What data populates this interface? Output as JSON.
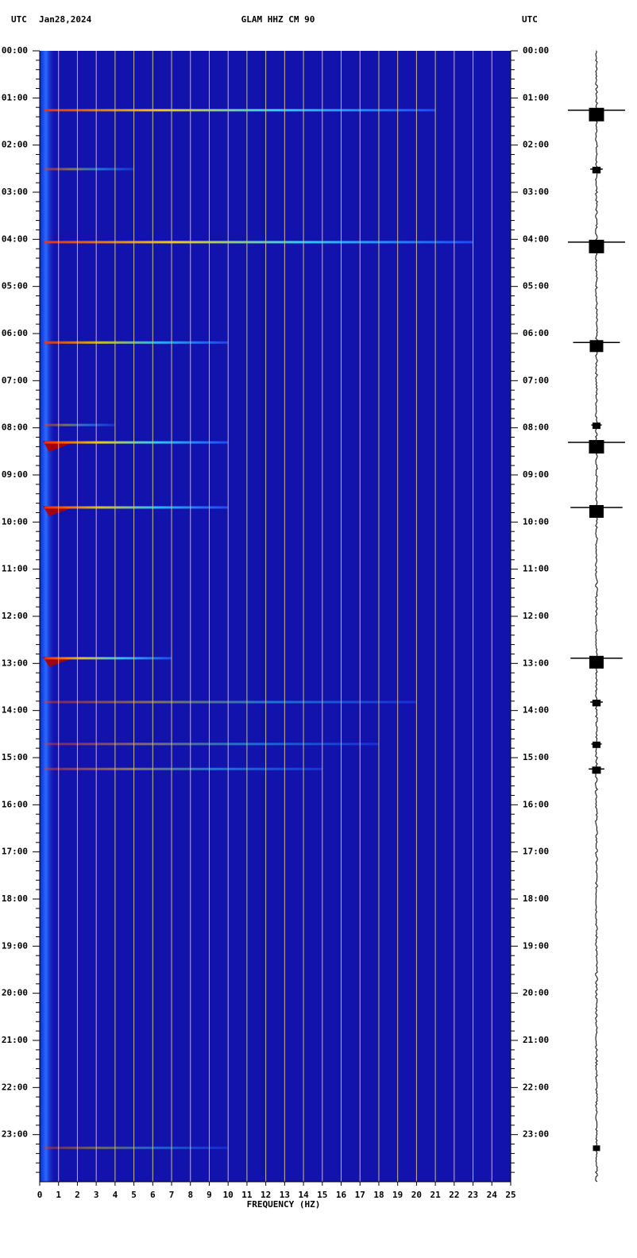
{
  "chart_data": {
    "type": "spectrogram",
    "title": "GLAM HHZ CM 90",
    "date": "Jan28,2024",
    "left_label": "UTC",
    "right_label": "UTC",
    "xlabel": "FREQUENCY (HZ)",
    "xlim": [
      0,
      25
    ],
    "xticks": [
      0,
      1,
      2,
      3,
      4,
      5,
      6,
      7,
      8,
      9,
      10,
      11,
      12,
      13,
      14,
      15,
      16,
      17,
      18,
      19,
      20,
      21,
      22,
      23,
      24,
      25
    ],
    "ylim": [
      0,
      24
    ],
    "yticks": [
      {
        "value": 0,
        "label": "00:00"
      },
      {
        "value": 1,
        "label": "01:00"
      },
      {
        "value": 2,
        "label": "02:00"
      },
      {
        "value": 3,
        "label": "03:00"
      },
      {
        "value": 4,
        "label": "04:00"
      },
      {
        "value": 5,
        "label": "05:00"
      },
      {
        "value": 6,
        "label": "06:00"
      },
      {
        "value": 7,
        "label": "07:00"
      },
      {
        "value": 8,
        "label": "08:00"
      },
      {
        "value": 9,
        "label": "09:00"
      },
      {
        "value": 10,
        "label": "10:00"
      },
      {
        "value": 11,
        "label": "11:00"
      },
      {
        "value": 12,
        "label": "12:00"
      },
      {
        "value": 13,
        "label": "13:00"
      },
      {
        "value": 14,
        "label": "14:00"
      },
      {
        "value": 15,
        "label": "15:00"
      },
      {
        "value": 16,
        "label": "16:00"
      },
      {
        "value": 17,
        "label": "17:00"
      },
      {
        "value": 18,
        "label": "18:00"
      },
      {
        "value": 19,
        "label": "19:00"
      },
      {
        "value": 20,
        "label": "20:00"
      },
      {
        "value": 21,
        "label": "21:00"
      },
      {
        "value": 22,
        "label": "22:00"
      },
      {
        "value": 23,
        "label": "23:00"
      }
    ],
    "background": "#1212ad",
    "grid_color": "#c9b98a",
    "events": {
      "time": [
        1.26,
        2.51,
        4.06,
        6.19,
        7.94,
        8.31,
        9.69,
        12.89,
        13.82,
        14.71,
        15.24,
        23.28
      ],
      "fmax": [
        21,
        5,
        23,
        10,
        4,
        10,
        10,
        7,
        20,
        18,
        15,
        10
      ],
      "amplitude": [
        0.55,
        0.12,
        0.55,
        0.45,
        0.1,
        0.55,
        0.5,
        0.5,
        0.12,
        0.1,
        0.15,
        0.05
      ]
    }
  }
}
